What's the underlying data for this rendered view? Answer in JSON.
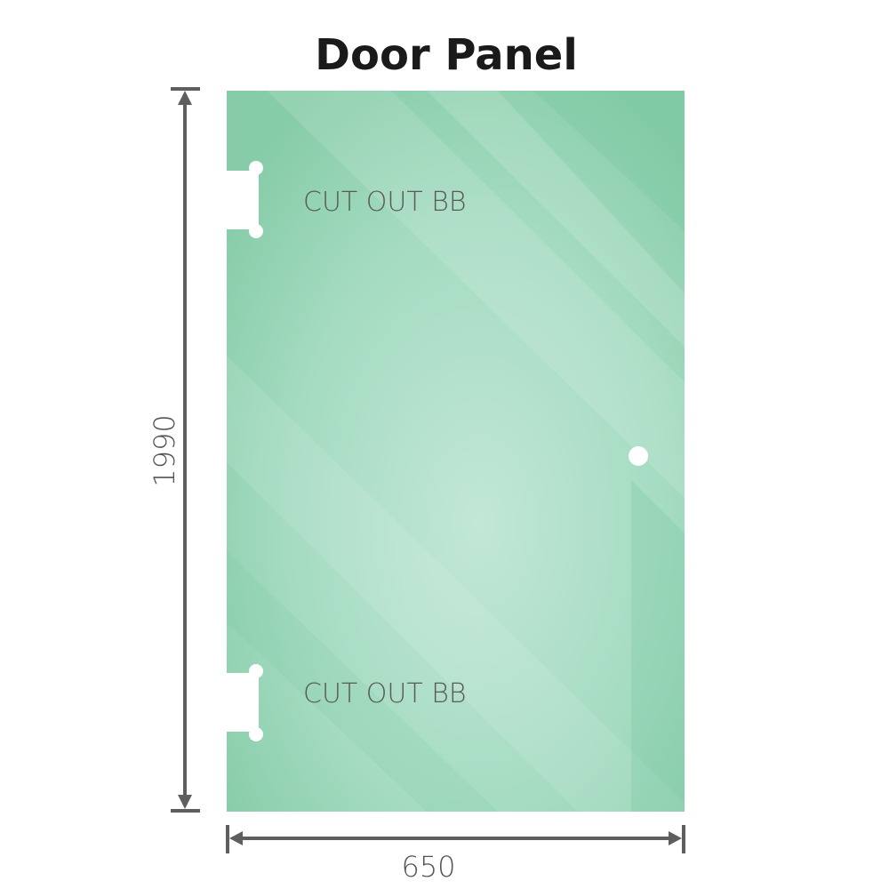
{
  "title": "Door Panel",
  "cutouts": [
    {
      "label": "CUT OUT BB"
    },
    {
      "label": "CUT OUT BB"
    }
  ],
  "dimensions": {
    "height": "1990",
    "width": "650"
  },
  "colors": {
    "glass": "#8ed0ae",
    "glass_light": "#c2e7d6",
    "dimension_line": "#5e5e5e",
    "label_text": "#5a5a5a"
  }
}
